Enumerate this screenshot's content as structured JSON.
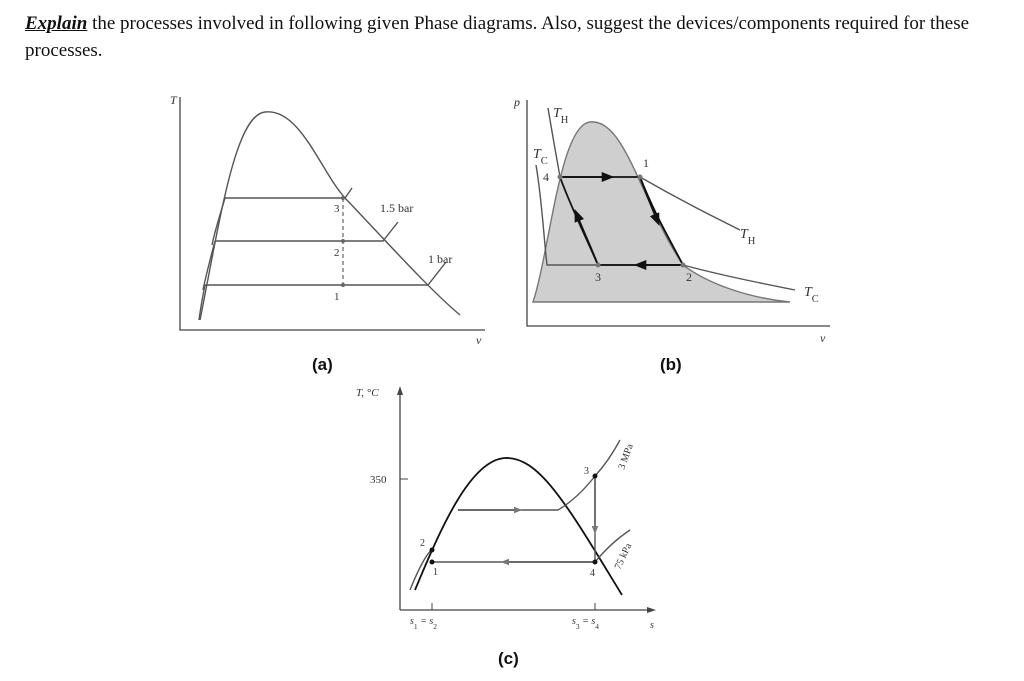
{
  "question": {
    "emphasis": "Explain",
    "text": "the processes involved in following given Phase diagrams. Also, suggest the devices/components required for these processes."
  },
  "diagrams": [
    {
      "caption": "(a)",
      "axis_y": "T",
      "axis_x": "v",
      "states": [
        "3",
        "2",
        "1"
      ],
      "pressures": [
        "1.5 bar",
        "1 bar"
      ]
    },
    {
      "caption": "(b)",
      "axis_y": "p",
      "axis_x": "v",
      "isotherms": [
        [
          "T",
          "H"
        ],
        [
          "T",
          "C"
        ],
        [
          "T",
          "H"
        ],
        [
          "T",
          "C"
        ]
      ],
      "states": [
        "4",
        "1",
        "3",
        "2"
      ]
    },
    {
      "caption": "(c)",
      "axis_y": "T, °C",
      "tick": "350",
      "axis_x": "s",
      "states": [
        "2",
        "1",
        "3",
        "4"
      ],
      "pressures": [
        "3 MPa",
        "75 kPa"
      ],
      "entropy": [
        [
          "s",
          "1",
          " = s",
          "2"
        ],
        [
          "s",
          "3",
          " = s",
          "4"
        ]
      ]
    }
  ]
}
